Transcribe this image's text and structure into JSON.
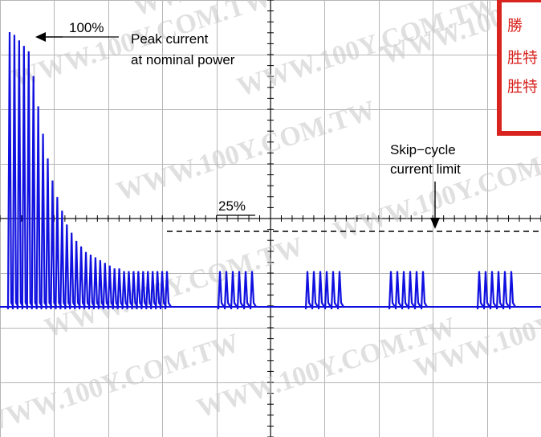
{
  "chart_data": {
    "type": "line",
    "title": "",
    "xlabel": "",
    "ylabel": "",
    "grid": true,
    "colors": {
      "trace": "#1010e0",
      "grid": "#b5b5b5",
      "stamp": "#d8231e"
    },
    "series": [
      {
        "peak_envelope_fraction": [
          1.0,
          0.99,
          0.97,
          0.95,
          0.93,
          0.84,
          0.73,
          0.63,
          0.54,
          0.46,
          0.4,
          0.35,
          0.3,
          0.27,
          0.24,
          0.22,
          0.2,
          0.19,
          0.18,
          0.17,
          0.16,
          0.15,
          0.14,
          0.14,
          0.13,
          0.13,
          0.13,
          0.13,
          0.13,
          0.13,
          0.13,
          0.13,
          0.13,
          0.13
        ],
        "burst_pulses": 6,
        "bursts": 4
      }
    ],
    "annotations": {
      "peak_pct": "100%",
      "peak_label_line1": "Peak current",
      "peak_label_line2": "at nominal power",
      "skip_pct": "25%",
      "skip_label_line1": "Skip−cycle",
      "skip_label_line2": "current limit"
    }
  },
  "overlay": {
    "stamp_lines": [
      "勝",
      "胜特",
      "胜特"
    ],
    "watermark": "WWW.100Y.COM.TW"
  }
}
